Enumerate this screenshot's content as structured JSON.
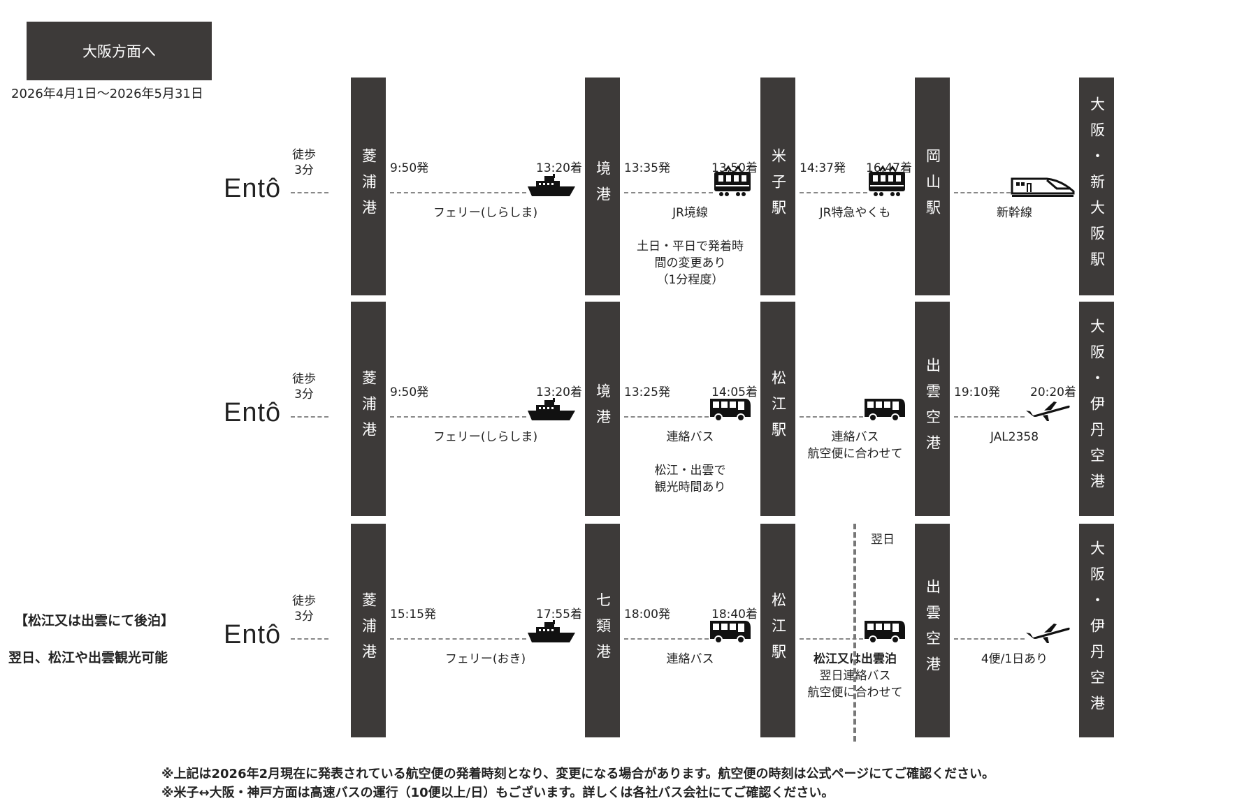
{
  "header": {
    "title": "大阪方面へ",
    "period": "2026年4月1日～2026年5月31日"
  },
  "origin": "Entô",
  "colors": {
    "bar": "#3d3a39",
    "dash": "#888888"
  },
  "rows": [
    {
      "walk": [
        "徒歩",
        "3分"
      ],
      "stations": [
        "菱浦港",
        "境港",
        "米子駅",
        "岡山駅",
        "大阪・新大阪駅"
      ],
      "segments": [
        {
          "dep": "9:50発",
          "arr": "13:20着",
          "icon": "ship-icon",
          "notes": [
            "フェリー(しらしま)"
          ]
        },
        {
          "dep": "13:35発",
          "arr": "13:50着",
          "icon": "train-icon",
          "notes": [
            "JR境線",
            "",
            "土日・平日で発着時",
            "間の変更あり",
            "（1分程度）"
          ]
        },
        {
          "dep": "14:37発",
          "arr": "16:47着",
          "icon": "train-icon",
          "notes": [
            "JR特急やくも"
          ]
        },
        {
          "dep": "",
          "arr": "",
          "icon": "shinkansen-icon",
          "notes": [
            "新幹線"
          ]
        }
      ]
    },
    {
      "walk": [
        "徒歩",
        "3分"
      ],
      "stations": [
        "菱浦港",
        "境港",
        "松江駅",
        "出雲空港",
        "大阪・伊丹空港"
      ],
      "segments": [
        {
          "dep": "9:50発",
          "arr": "13:20着",
          "icon": "ship-icon",
          "notes": [
            "フェリー(しらしま)"
          ]
        },
        {
          "dep": "13:25発",
          "arr": "14:05着",
          "icon": "bus-icon",
          "notes": [
            "連絡バス",
            "",
            "松江・出雲で",
            "観光時間あり"
          ]
        },
        {
          "dep": "",
          "arr": "",
          "icon": "bus-icon",
          "notes": [
            "連絡バス",
            "航空便に合わせて"
          ]
        },
        {
          "dep": "19:10発",
          "arr": "20:20着",
          "icon": "plane-icon",
          "notes": [
            "JAL2358"
          ]
        }
      ]
    },
    {
      "walk": [
        "徒歩",
        "3分"
      ],
      "stations": [
        "菱浦港",
        "七類港",
        "松江駅",
        "出雲空港",
        "大阪・伊丹空港"
      ],
      "segments": [
        {
          "dep": "15:15発",
          "arr": "17:55着",
          "icon": "ship-icon",
          "notes": [
            "フェリー(おき)"
          ]
        },
        {
          "dep": "18:00発",
          "arr": "18:40着",
          "icon": "bus-icon",
          "notes": [
            "連絡バス"
          ]
        },
        {
          "dep": "",
          "arr": "",
          "icon": "bus-icon",
          "bold": "松江又は出雲泊",
          "notes": [
            "翌日連絡バス",
            "航空便に合わせて"
          ]
        },
        {
          "dep": "",
          "arr": "",
          "icon": "plane-icon",
          "notes": [
            "4便/1日あり"
          ]
        }
      ],
      "next_day": "翌日"
    }
  ],
  "left_note": {
    "title": "【松江又は出雲にて後泊】",
    "text": "翌日、松江や出雲観光可能"
  },
  "footer": [
    "※上記は2026年2月現在に発表されている航空便の発着時刻となり、変更になる場合があります。航空便の時刻は公式ページにてご確認ください。",
    "※米子↔大阪・神戸方面は高速バスの運行（10便以上/日）もございます。詳しくは各社バス会社にてご確認ください。"
  ]
}
